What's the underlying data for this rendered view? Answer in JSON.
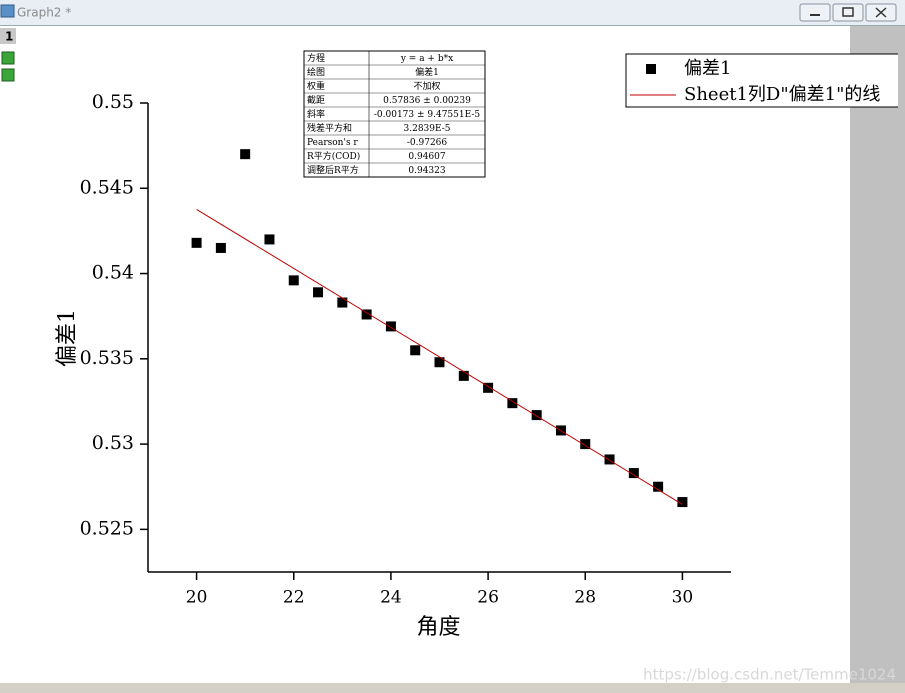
{
  "window": {
    "title": "Graph2 *",
    "layer": "1"
  },
  "chart_data": {
    "type": "scatter",
    "xlabel": "角度",
    "ylabel": "偏差1",
    "xlim": [
      19,
      31
    ],
    "ylim": [
      0.5225,
      0.55
    ],
    "xticks": [
      20,
      22,
      24,
      26,
      28,
      30
    ],
    "yticks": [
      0.525,
      0.53,
      0.535,
      0.54,
      0.545,
      0.55
    ],
    "legend": "top-right",
    "series": [
      {
        "name": "偏差1",
        "type": "scatter",
        "color": "#000000",
        "x": [
          20,
          20.5,
          21,
          21.5,
          22,
          22.5,
          23,
          23.5,
          24,
          24.5,
          25,
          25.5,
          26,
          26.5,
          27,
          27.5,
          28,
          28.5,
          29,
          29.5,
          30
        ],
        "values": [
          0.5418,
          0.5415,
          0.547,
          0.542,
          0.5396,
          0.5389,
          0.5383,
          0.5376,
          0.5369,
          0.5355,
          0.5348,
          0.534,
          0.5333,
          0.5324,
          0.5317,
          0.5308,
          0.53,
          0.5291,
          0.5283,
          0.5275,
          0.5266
        ]
      },
      {
        "name": "Sheet1列D\"偏差1\"的线",
        "type": "line",
        "color": "#c00000",
        "x": [
          20,
          30
        ],
        "values": [
          0.54376,
          0.52646
        ]
      }
    ],
    "fit_table": [
      [
        "方程",
        "y = a + b*x"
      ],
      [
        "绘图",
        "偏差1"
      ],
      [
        "权重",
        "不加权"
      ],
      [
        "截距",
        "0.57836 ± 0.00239"
      ],
      [
        "斜率",
        "-0.00173 ± 9.47551E-5"
      ],
      [
        "残差平方和",
        "3.2839E-5"
      ],
      [
        "Pearson's r",
        "-0.97266"
      ],
      [
        "R平方(COD)",
        "0.94607"
      ],
      [
        "调整后R平方",
        "0.94323"
      ]
    ]
  },
  "watermark": "https://blog.csdn.net/Temme1024"
}
